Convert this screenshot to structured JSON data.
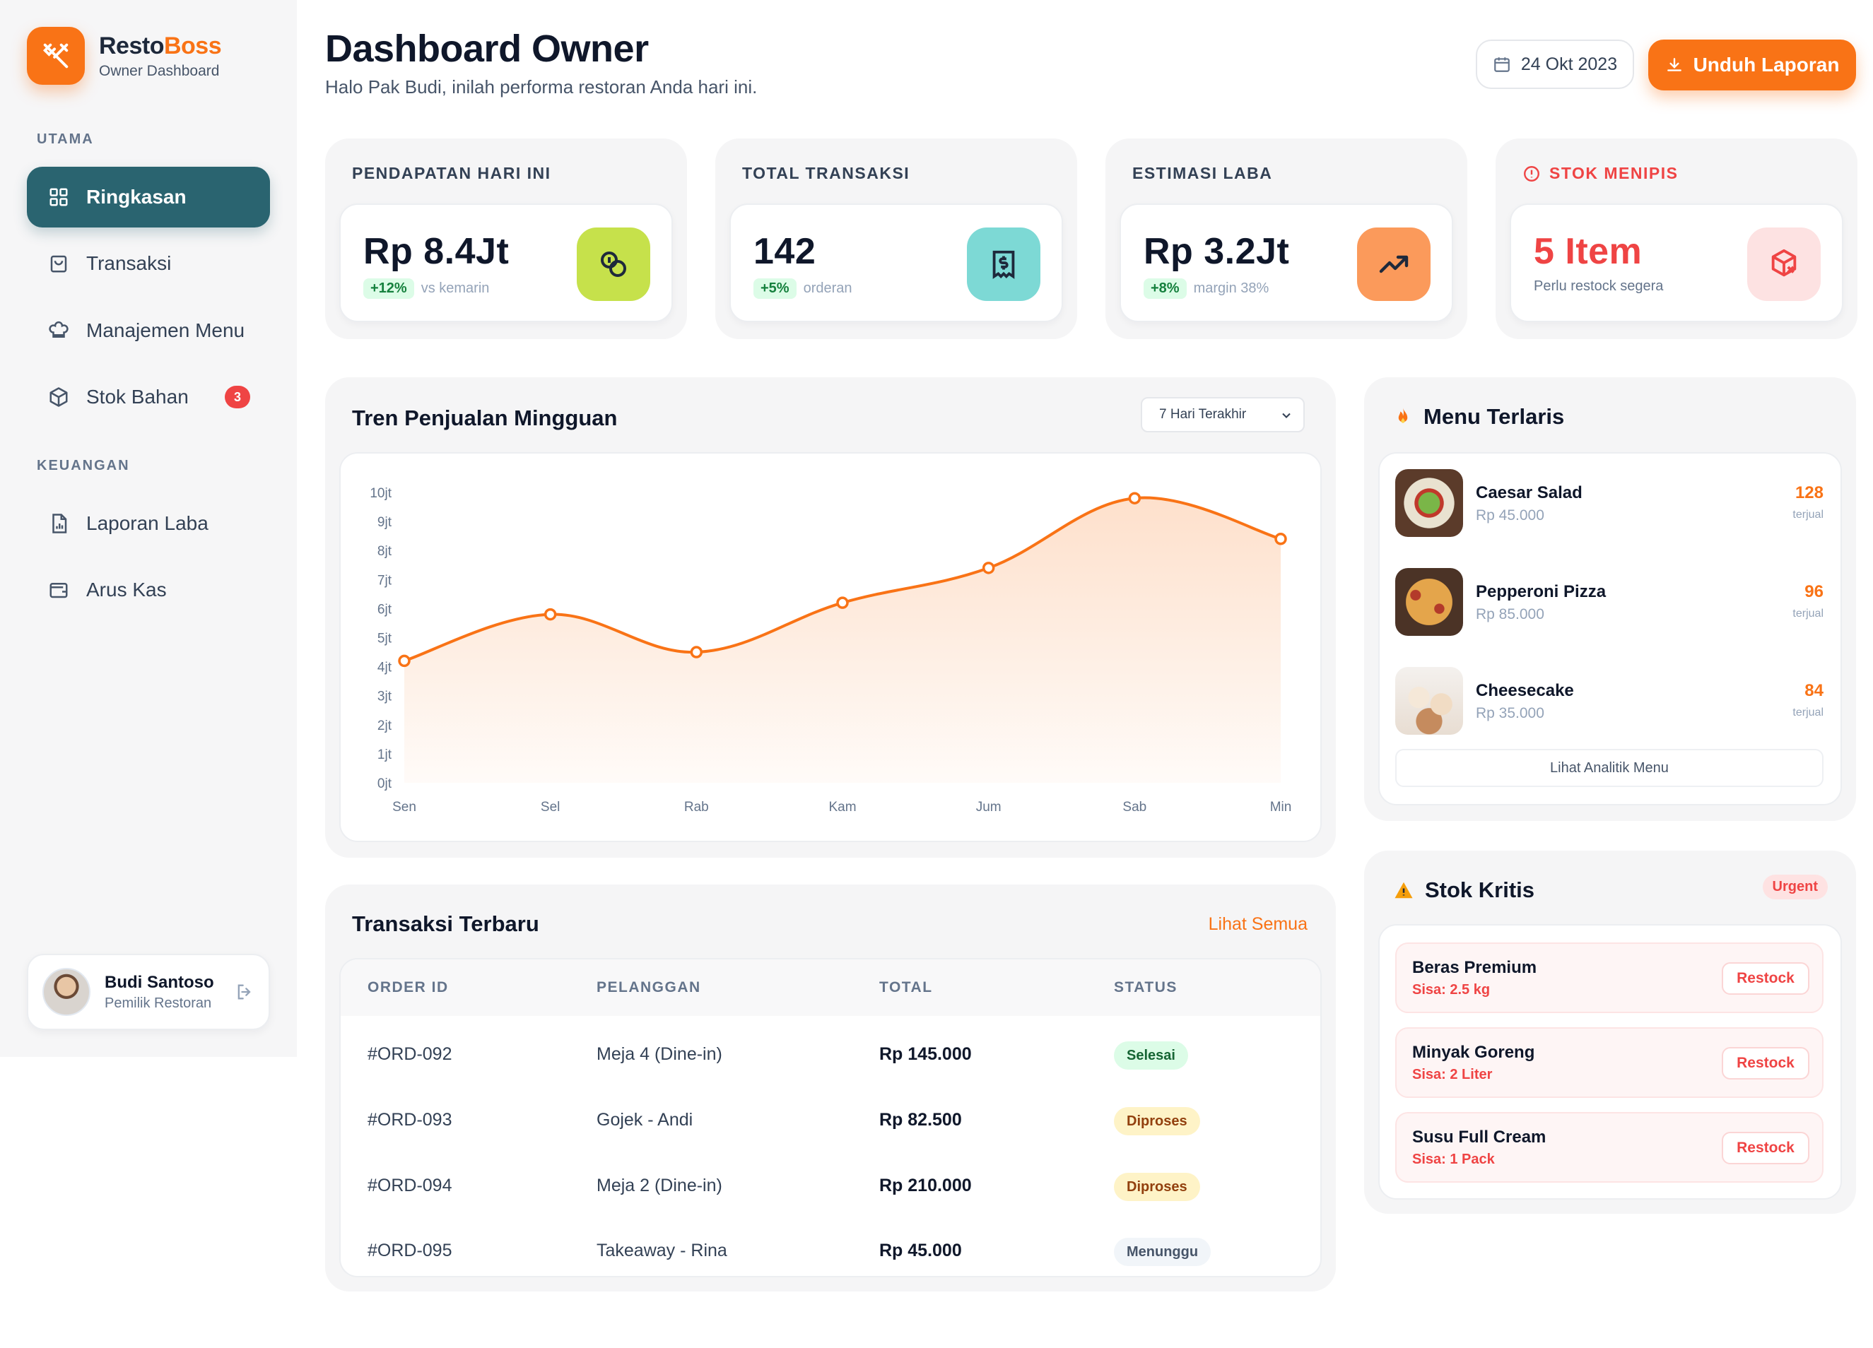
{
  "brand": {
    "name_part1": "Resto",
    "name_part2": "Boss",
    "subtitle": "Owner Dashboard"
  },
  "sidebar": {
    "section_main": "UTAMA",
    "section_finance": "KEUANGAN",
    "items": [
      {
        "label": "Ringkasan",
        "icon": "grid-icon",
        "active": true
      },
      {
        "label": "Transaksi",
        "icon": "shopping-bag-icon"
      },
      {
        "label": "Manajemen Menu",
        "icon": "chef-hat-icon"
      },
      {
        "label": "Stok Bahan",
        "icon": "box-icon",
        "badge": "3"
      },
      {
        "label": "Laporan Laba",
        "icon": "file-chart-icon"
      },
      {
        "label": "Arus Kas",
        "icon": "wallet-icon"
      }
    ],
    "user": {
      "name": "Budi Santoso",
      "role": "Pemilik Restoran"
    }
  },
  "header": {
    "title": "Dashboard Owner",
    "subtitle": "Halo Pak Budi, inilah performa restoran Anda hari ini.",
    "date": "24 Okt 2023",
    "download_label": "Unduh Laporan"
  },
  "kpis": [
    {
      "label": "PENDAPATAN HARI INI",
      "value": "Rp 8.4Jt",
      "chip": "+12%",
      "note": "vs kemarin",
      "icon": "coins-icon",
      "color": "#c6e14b"
    },
    {
      "label": "TOTAL TRANSAKSI",
      "value": "142",
      "chip": "+5%",
      "note": "orderan",
      "icon": "receipt-icon",
      "color": "#7dd9d5"
    },
    {
      "label": "ESTIMASI LABA",
      "value": "Rp 3.2Jt",
      "chip": "+8%",
      "note": "margin 38%",
      "icon": "trending-up-icon",
      "color": "#fb9a5b"
    },
    {
      "label": "STOK MENIPIS",
      "value": "5 Item",
      "note": "Perlu restock segera",
      "icon": "package-x-icon",
      "color": "#fde2e2"
    }
  ],
  "sales_chart": {
    "title": "Tren Penjualan Mingguan",
    "range_select": "7 Hari Terakhir"
  },
  "chart_data": {
    "type": "area",
    "categories": [
      "Sen",
      "Sel",
      "Rab",
      "Kam",
      "Jum",
      "Sab",
      "Min"
    ],
    "values": [
      4.2,
      5.8,
      4.5,
      6.2,
      7.4,
      9.8,
      8.4
    ],
    "y_ticks": [
      "0jt",
      "1jt",
      "2jt",
      "3jt",
      "4jt",
      "5jt",
      "6jt",
      "7jt",
      "8jt",
      "9jt",
      "10jt"
    ],
    "ylim": [
      0,
      10
    ],
    "color": "#f97316",
    "grid": false,
    "legend": "none"
  },
  "transactions": {
    "title": "Transaksi Terbaru",
    "see_all": "Lihat Semua",
    "columns": [
      "ORDER ID",
      "PELANGGAN",
      "TOTAL",
      "STATUS"
    ],
    "rows": [
      {
        "id": "#ORD-092",
        "customer": "Meja 4 (Dine-in)",
        "total": "Rp 145.000",
        "status": "Selesai",
        "kind": "done"
      },
      {
        "id": "#ORD-093",
        "customer": "Gojek - Andi",
        "total": "Rp 82.500",
        "status": "Diproses",
        "kind": "proc"
      },
      {
        "id": "#ORD-094",
        "customer": "Meja 2 (Dine-in)",
        "total": "Rp 210.000",
        "status": "Diproses",
        "kind": "proc"
      },
      {
        "id": "#ORD-095",
        "customer": "Takeaway - Rina",
        "total": "Rp 45.000",
        "status": "Menunggu",
        "kind": "wait"
      }
    ]
  },
  "best_menu": {
    "title": "Menu Terlaris",
    "sold_label": "terjual",
    "link": "Lihat Analitik Menu",
    "items": [
      {
        "name": "Caesar Salad",
        "price": "Rp 45.000",
        "count": "128"
      },
      {
        "name": "Pepperoni Pizza",
        "price": "Rp 85.000",
        "count": "96"
      },
      {
        "name": "Cheesecake",
        "price": "Rp 35.000",
        "count": "84"
      }
    ]
  },
  "critical_stock": {
    "title": "Stok Kritis",
    "badge": "Urgent",
    "button_label": "Restock",
    "items": [
      {
        "name": "Beras Premium",
        "remaining": "Sisa: 2.5 kg"
      },
      {
        "name": "Minyak Goreng",
        "remaining": "Sisa: 2 Liter"
      },
      {
        "name": "Susu Full Cream",
        "remaining": "Sisa: 1 Pack"
      }
    ]
  }
}
